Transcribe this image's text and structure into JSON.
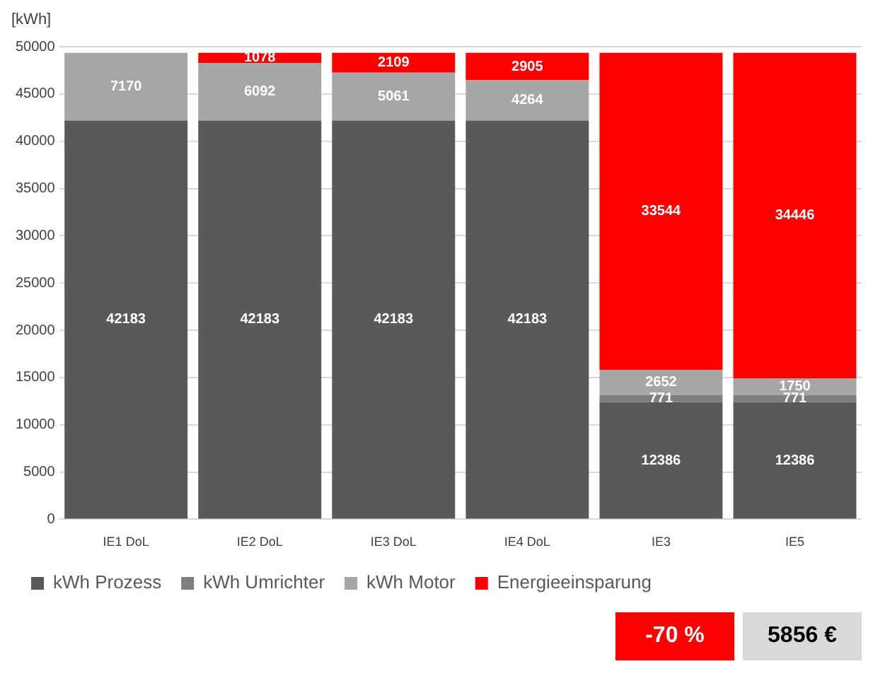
{
  "chart_data": {
    "type": "bar",
    "stacked": true,
    "ylabel": "[kWh]",
    "categories": [
      "IE1 DoL",
      "IE2 DoL",
      "IE3 DoL",
      "IE4 DoL",
      "IE3",
      "IE5"
    ],
    "series": [
      {
        "name": "kWh Prozess",
        "color": "#595959",
        "values": [
          42183,
          42183,
          42183,
          42183,
          12386,
          12386
        ]
      },
      {
        "name": "kWh Umrichter",
        "color": "#7f7f7f",
        "values": [
          null,
          null,
          null,
          null,
          771,
          771
        ]
      },
      {
        "name": "kWh Motor",
        "color": "#a6a6a6",
        "values": [
          7170,
          6092,
          5061,
          4264,
          2652,
          1750
        ]
      },
      {
        "name": "Energieeinsparung",
        "color": "#ff0000",
        "values": [
          null,
          1078,
          2109,
          2905,
          33544,
          34446
        ]
      }
    ],
    "ylim": [
      0,
      50000
    ],
    "yticks": [
      0,
      5000,
      10000,
      15000,
      20000,
      25000,
      30000,
      35000,
      40000,
      45000,
      50000
    ],
    "grid": "y",
    "legend": "bottom",
    "data_labels": true,
    "annotations": [
      "-70 %",
      "5856 €"
    ]
  }
}
